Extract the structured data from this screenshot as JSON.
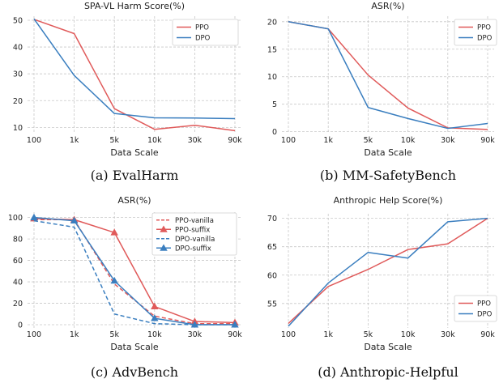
{
  "chart_data": [
    {
      "id": "a",
      "type": "line",
      "title": "SPA-VL Harm Score(%)",
      "xlabel": "Data Scale",
      "categories": [
        "100",
        "1k",
        "5k",
        "10k",
        "30k",
        "90k"
      ],
      "ylim": [
        8,
        51.5
      ],
      "yticks": [
        10,
        20,
        30,
        40,
        50
      ],
      "grid": true,
      "legend_position": "top-right",
      "caption": "(a) EvalHarm",
      "series": [
        {
          "name": "PPO",
          "color": "#e05a5a",
          "dash": "solid",
          "marker": "none",
          "values": [
            50.3,
            45.0,
            17.0,
            9.3,
            10.8,
            8.8
          ]
        },
        {
          "name": "DPO",
          "color": "#3a7ebf",
          "dash": "solid",
          "marker": "none",
          "values": [
            50.5,
            29.4,
            15.2,
            13.6,
            13.5,
            13.3
          ]
        }
      ]
    },
    {
      "id": "b",
      "type": "line",
      "title": "ASR(%)",
      "xlabel": "Data Scale",
      "categories": [
        "100",
        "1k",
        "5k",
        "10k",
        "30k",
        "90k"
      ],
      "ylim": [
        -0.2,
        21
      ],
      "yticks": [
        0,
        5,
        10,
        15,
        20
      ],
      "grid": true,
      "legend_position": "top-right",
      "caption": "(b) MM-SafetyBench",
      "series": [
        {
          "name": "PPO",
          "color": "#e05a5a",
          "dash": "solid",
          "marker": "none",
          "values": [
            20.0,
            18.7,
            10.3,
            4.3,
            0.7,
            0.4
          ]
        },
        {
          "name": "DPO",
          "color": "#3a7ebf",
          "dash": "solid",
          "marker": "none",
          "values": [
            20.0,
            18.7,
            4.4,
            2.4,
            0.6,
            1.5
          ]
        }
      ]
    },
    {
      "id": "c",
      "type": "line",
      "title": "ASR(%)",
      "xlabel": "Data Scale",
      "categories": [
        "100",
        "1k",
        "5k",
        "10k",
        "30k",
        "90k"
      ],
      "ylim": [
        -3,
        105
      ],
      "yticks": [
        0,
        20,
        40,
        60,
        80,
        100
      ],
      "grid": true,
      "legend_position": "top-right",
      "caption": "(c) AdvBench",
      "series": [
        {
          "name": "PPO-vanilla",
          "color": "#e05a5a",
          "dash": "dashed",
          "marker": "none",
          "values": [
            98,
            98,
            38,
            8,
            1,
            1
          ]
        },
        {
          "name": "PPO-suffix",
          "color": "#e05a5a",
          "dash": "solid",
          "marker": "triangle",
          "values": [
            99,
            98,
            86,
            17,
            3,
            2
          ]
        },
        {
          "name": "DPO-vanilla",
          "color": "#3a7ebf",
          "dash": "dashed",
          "marker": "none",
          "values": [
            97,
            91,
            10,
            1,
            0,
            0
          ]
        },
        {
          "name": "DPO-suffix",
          "color": "#3a7ebf",
          "dash": "solid",
          "marker": "triangle",
          "values": [
            100,
            97,
            41,
            6,
            0,
            0
          ]
        }
      ]
    },
    {
      "id": "d",
      "type": "line",
      "title": "Anthropic Help Score(%)",
      "xlabel": "Data Scale",
      "categories": [
        "100",
        "1k",
        "5k",
        "10k",
        "30k",
        "90k"
      ],
      "ylim": [
        50.7,
        70.8
      ],
      "yticks": [
        55,
        60,
        65,
        70
      ],
      "grid": true,
      "legend_position": "bottom-right",
      "caption": "(d) Anthropic-Helpful",
      "series": [
        {
          "name": "PPO",
          "color": "#e05a5a",
          "dash": "solid",
          "marker": "none",
          "values": [
            51.5,
            58.0,
            61.0,
            64.5,
            65.5,
            70.0
          ]
        },
        {
          "name": "DPO",
          "color": "#3a7ebf",
          "dash": "solid",
          "marker": "none",
          "values": [
            51.0,
            58.6,
            64.0,
            63.0,
            69.4,
            70.0
          ]
        }
      ]
    }
  ]
}
